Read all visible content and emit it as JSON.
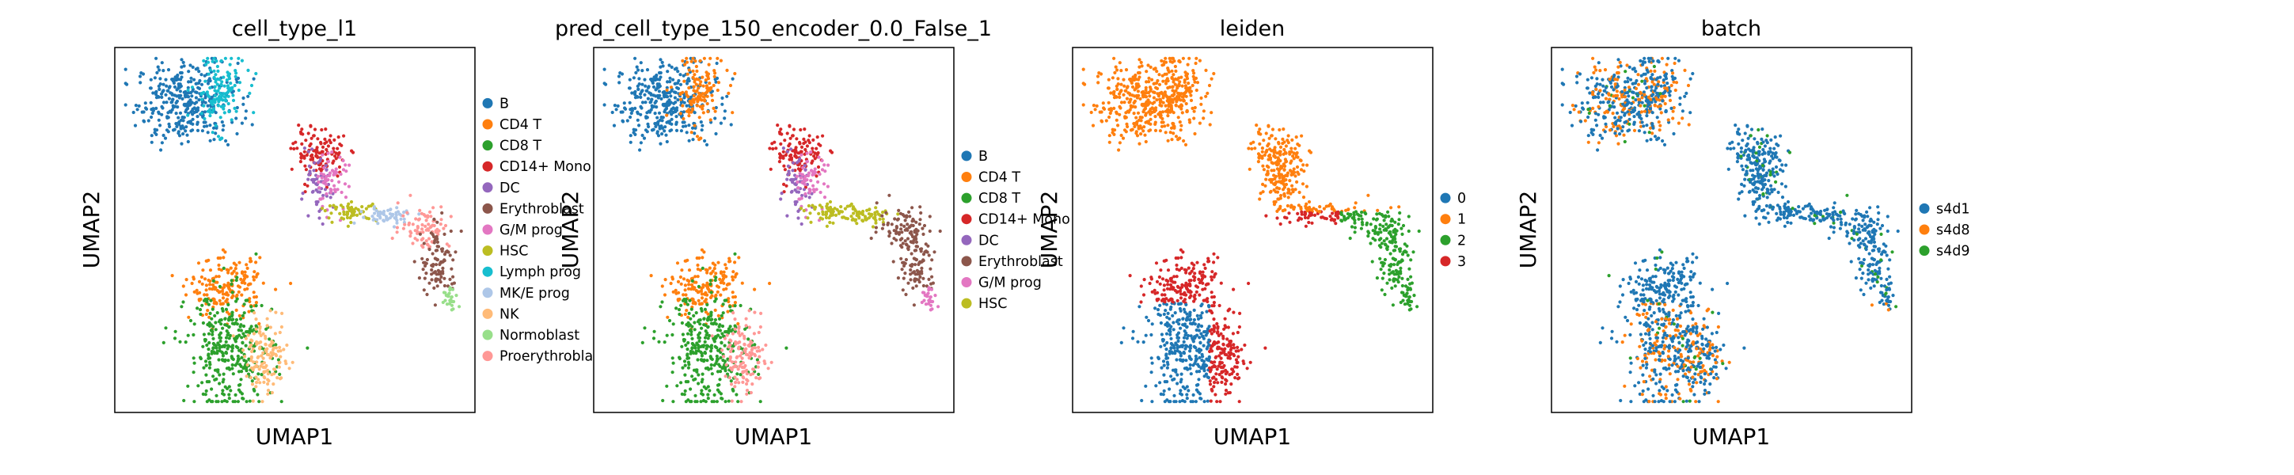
{
  "chart_data": [
    {
      "type": "scatter",
      "title": "cell_type_l1",
      "xlabel": "UMAP1",
      "ylabel": "UMAP2",
      "legend_position": "right",
      "categories": [
        {
          "name": "B",
          "color": "#1f77b4"
        },
        {
          "name": "CD4 T",
          "color": "#ff7f0e"
        },
        {
          "name": "CD8 T",
          "color": "#2ca02c"
        },
        {
          "name": "CD14+ Mono",
          "color": "#d62728"
        },
        {
          "name": "DC",
          "color": "#9467bd"
        },
        {
          "name": "Erythroblast",
          "color": "#8c564b"
        },
        {
          "name": "G/M prog",
          "color": "#e377c2"
        },
        {
          "name": "HSC",
          "color": "#bcbd22"
        },
        {
          "name": "Lymph prog",
          "color": "#17becf"
        },
        {
          "name": "MK/E prog",
          "color": "#aec7e8"
        },
        {
          "name": "NK",
          "color": "#ffbb78"
        },
        {
          "name": "Normoblast",
          "color": "#98df8a"
        },
        {
          "name": "Proerythroblast",
          "color": "#ff9896"
        }
      ]
    },
    {
      "type": "scatter",
      "title": "pred_cell_type_150_encoder_0.0_False_1",
      "xlabel": "UMAP1",
      "ylabel": "UMAP2",
      "legend_position": "right",
      "categories": [
        {
          "name": "B",
          "color": "#1f77b4"
        },
        {
          "name": "CD4 T",
          "color": "#ff7f0e"
        },
        {
          "name": "CD8 T",
          "color": "#2ca02c"
        },
        {
          "name": "CD14+ Mono",
          "color": "#d62728"
        },
        {
          "name": "DC",
          "color": "#9467bd"
        },
        {
          "name": "Erythroblast",
          "color": "#8c564b"
        },
        {
          "name": "G/M prog",
          "color": "#e377c2"
        },
        {
          "name": "HSC",
          "color": "#bcbd22"
        }
      ]
    },
    {
      "type": "scatter",
      "title": "leiden",
      "xlabel": "UMAP1",
      "ylabel": "UMAP2",
      "legend_position": "right",
      "categories": [
        {
          "name": "0",
          "color": "#1f77b4"
        },
        {
          "name": "1",
          "color": "#ff7f0e"
        },
        {
          "name": "2",
          "color": "#2ca02c"
        },
        {
          "name": "3",
          "color": "#d62728"
        }
      ]
    },
    {
      "type": "scatter",
      "title": "batch",
      "xlabel": "UMAP1",
      "ylabel": "UMAP2",
      "legend_position": "right",
      "categories": [
        {
          "name": "s4d1",
          "color": "#1f77b4"
        },
        {
          "name": "s4d8",
          "color": "#ff7f0e"
        },
        {
          "name": "s4d9",
          "color": "#2ca02c"
        }
      ]
    }
  ]
}
